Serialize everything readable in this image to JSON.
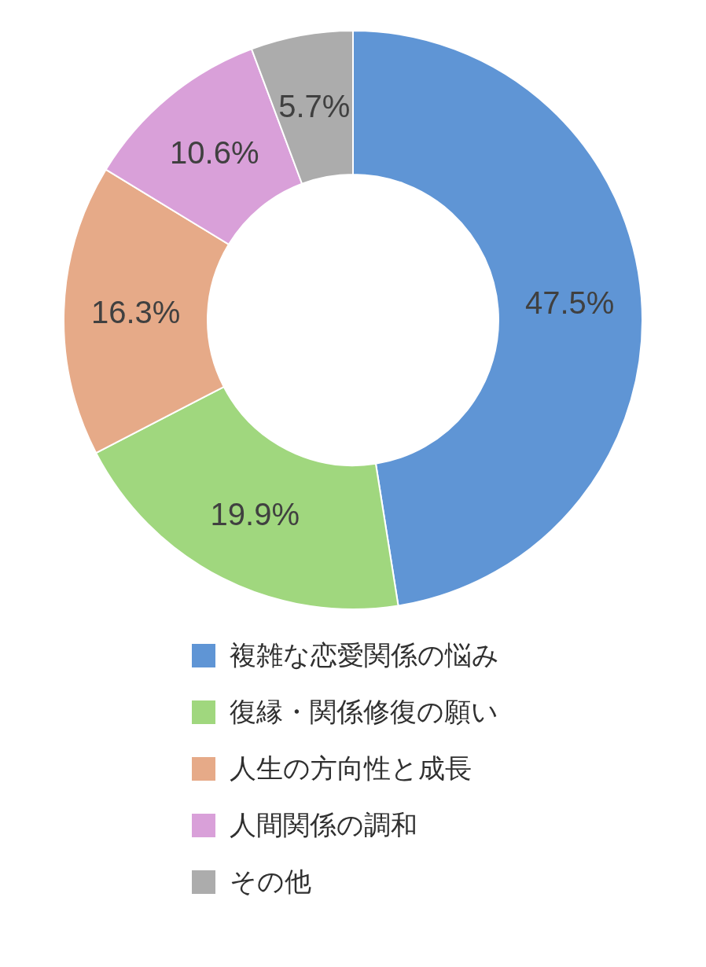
{
  "chart_data": {
    "type": "donut",
    "categories": [
      "複雑な恋愛関係の悩み",
      "復縁・関係修復の願い",
      "人生の方向性と成長",
      "人間関係の調和",
      "その他"
    ],
    "values": [
      47.5,
      19.9,
      16.3,
      10.6,
      5.7
    ],
    "value_labels": [
      "47.5%",
      "19.9%",
      "16.3%",
      "10.6%",
      "5.7%"
    ],
    "colors": [
      "#5f95d5",
      "#a0d77e",
      "#e6aa88",
      "#d9a0d9",
      "#acacac"
    ],
    "legend": "bottom"
  }
}
